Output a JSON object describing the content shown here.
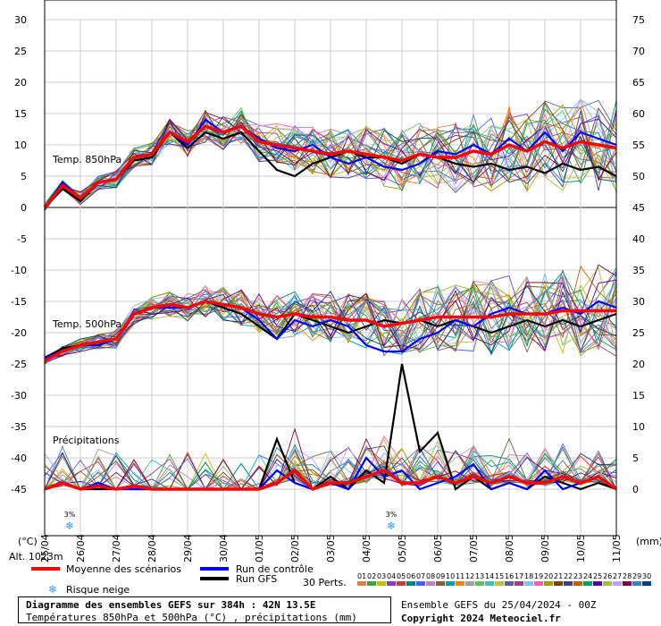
{
  "header": {
    "unit_left": "(°C)",
    "unit_right": "(mm)",
    "altitude": "Alt. 1023m"
  },
  "chart_data": {
    "type": "line",
    "title": "Diagramme des ensembles GEFS sur 384h : 42N 13.5E",
    "subtitle": "Températures 850hPa et 500hPa (°C) , précipitations (mm)",
    "run": "Ensemble GEFS du 25/04/2024 - 00Z",
    "copyright": "Copyright 2024 Meteociel.fr",
    "x_date_labels": [
      "25/04",
      "26/04",
      "27/04",
      "28/04",
      "29/04",
      "30/04",
      "01/05",
      "02/05",
      "03/05",
      "04/05",
      "05/05",
      "06/05",
      "07/05",
      "08/05",
      "09/05",
      "10/05",
      "11/05"
    ],
    "x_range_h": [
      0,
      384
    ],
    "left_axis": {
      "ticks": [
        30,
        25,
        20,
        15,
        10,
        5,
        0,
        -5,
        -10,
        -15,
        -20,
        -25,
        -30,
        -35,
        -40,
        -45
      ],
      "unit": "°C",
      "range": [
        -45,
        30
      ]
    },
    "right_axis": {
      "ticks": [
        75,
        70,
        65,
        60,
        55,
        50,
        45,
        40,
        35,
        30,
        25,
        20,
        15,
        10,
        5,
        0
      ],
      "unit": "mm",
      "range": [
        0,
        75
      ]
    },
    "panel_labels": [
      "Temp. 850hPa",
      "Temp. 500hPa",
      "Précipitations"
    ],
    "snow_risk_dates": [
      "25/04",
      "04/05"
    ],
    "snow_risk_marker_label": "3%",
    "legend": {
      "mean": "Moyenne des scénarios",
      "control": "Run de contrôle",
      "gfs": "Run GFS",
      "snow": "Risque neige",
      "perts": "30 Perts.",
      "pert_numbers": [
        "01",
        "02",
        "03",
        "04",
        "05",
        "06",
        "07",
        "08",
        "09",
        "10",
        "11",
        "12",
        "13",
        "14",
        "15",
        "16",
        "17",
        "18",
        "19",
        "20",
        "21",
        "22",
        "23",
        "24",
        "25",
        "26",
        "27",
        "28",
        "29",
        "30"
      ],
      "pert_colors": [
        "#e08040",
        "#40a040",
        "#c0c000",
        "#8040c0",
        "#c04040",
        "#008080",
        "#4060ff",
        "#c080c0",
        "#806040",
        "#00a0a0",
        "#ff8000",
        "#a0a0a0",
        "#60c060",
        "#40c0c0",
        "#c0c040",
        "#6060a0",
        "#a04080",
        "#80c0ff",
        "#ff60a0",
        "#a0a000",
        "#804000",
        "#404080",
        "#c06000",
        "#00a060",
        "#6000a0",
        "#a0c040",
        "#c0a0ff",
        "#800040",
        "#4080c0",
        "#004080"
      ]
    },
    "series": [
      {
        "name": "Moyenne des scénarios",
        "panel": "850hPa",
        "color": "#ff0000",
        "x_h": [
          0,
          12,
          24,
          36,
          48,
          60,
          72,
          84,
          96,
          108,
          120,
          132,
          144,
          156,
          168,
          180,
          192,
          204,
          216,
          228,
          240,
          252,
          264,
          276,
          288,
          300,
          312,
          324,
          336,
          348,
          360,
          372,
          384
        ],
        "y": [
          0,
          3.5,
          1.5,
          4,
          4.5,
          8,
          8.5,
          12,
          10.5,
          13,
          12,
          13,
          10.5,
          10,
          9.5,
          9,
          8.5,
          9,
          8.5,
          8,
          7.5,
          8.5,
          8,
          8,
          9,
          8.5,
          10,
          9,
          10.5,
          9.5,
          10.5,
          10,
          9.5
        ]
      },
      {
        "name": "Run de contrôle",
        "panel": "850hPa",
        "color": "#0000ff",
        "x_h": [
          0,
          12,
          24,
          36,
          48,
          60,
          72,
          84,
          96,
          108,
          120,
          132,
          144,
          156,
          168,
          180,
          192,
          204,
          216,
          228,
          240,
          252,
          264,
          276,
          288,
          300,
          312,
          324,
          336,
          348,
          360,
          372,
          384
        ],
        "y": [
          0,
          4,
          1.5,
          4,
          4.5,
          8,
          8.5,
          12,
          10,
          14,
          12,
          13,
          11,
          9.5,
          9,
          10,
          8,
          7,
          8,
          6.5,
          6,
          7,
          9,
          8.5,
          10,
          8.5,
          11,
          9,
          12,
          9,
          12,
          11,
          10
        ]
      },
      {
        "name": "Run GFS",
        "panel": "850hPa",
        "color": "#000000",
        "x_h": [
          0,
          12,
          24,
          36,
          48,
          60,
          72,
          84,
          96,
          108,
          120,
          132,
          144,
          156,
          168,
          180,
          192,
          204,
          216,
          228,
          240,
          252,
          264,
          276,
          288,
          300,
          312,
          324,
          336,
          348,
          360,
          372,
          384
        ],
        "y": [
          0,
          3,
          1,
          4,
          4.5,
          7.5,
          8,
          12,
          9.5,
          12,
          11,
          12,
          9,
          6,
          5,
          7,
          8,
          9,
          8,
          8,
          7,
          8.5,
          8,
          7,
          6.5,
          7,
          6,
          6.5,
          5.5,
          7,
          6,
          6.5,
          5
        ]
      },
      {
        "name": "Moyenne des scénarios",
        "panel": "500hPa",
        "color": "#ff0000",
        "x_h": [
          0,
          12,
          24,
          36,
          48,
          60,
          72,
          84,
          96,
          108,
          120,
          132,
          144,
          156,
          168,
          180,
          192,
          204,
          216,
          228,
          240,
          252,
          264,
          276,
          288,
          300,
          312,
          324,
          336,
          348,
          360,
          372,
          384
        ],
        "y": [
          -24.5,
          -23,
          -22,
          -21.5,
          -21,
          -17,
          -16,
          -15.5,
          -16,
          -15,
          -15.5,
          -16,
          -17,
          -17.5,
          -17,
          -17.5,
          -17.5,
          -18,
          -18,
          -19,
          -18.5,
          -18,
          -17.5,
          -17.5,
          -17.5,
          -17.5,
          -17,
          -17,
          -17,
          -16.5,
          -16.5,
          -16.5,
          -16.5
        ]
      },
      {
        "name": "Run de contrôle",
        "panel": "500hPa",
        "color": "#0000ff",
        "x_h": [
          0,
          12,
          24,
          36,
          48,
          60,
          72,
          84,
          96,
          108,
          120,
          132,
          144,
          156,
          168,
          180,
          192,
          204,
          216,
          228,
          240,
          252,
          264,
          276,
          288,
          300,
          312,
          324,
          336,
          348,
          360,
          372,
          384
        ],
        "y": [
          -24,
          -23,
          -22,
          -22,
          -21,
          -17,
          -16,
          -16,
          -16,
          -15,
          -15.5,
          -16,
          -18,
          -21,
          -18,
          -19,
          -18,
          -19,
          -22,
          -23,
          -23,
          -21,
          -20,
          -18,
          -19,
          -17,
          -16,
          -17,
          -17,
          -16,
          -17,
          -15,
          -16
        ]
      },
      {
        "name": "Run GFS",
        "panel": "500hPa",
        "color": "#000000",
        "x_h": [
          0,
          12,
          24,
          36,
          48,
          60,
          72,
          84,
          96,
          108,
          120,
          132,
          144,
          156,
          168,
          180,
          192,
          204,
          216,
          228,
          240,
          252,
          264,
          276,
          288,
          300,
          312,
          324,
          336,
          348,
          360,
          372,
          384
        ],
        "y": [
          -24,
          -22.5,
          -22,
          -22,
          -21,
          -17,
          -16,
          -15.5,
          -16,
          -15,
          -16,
          -17,
          -19,
          -21,
          -17,
          -18,
          -19,
          -20,
          -19,
          -18,
          -18.5,
          -18,
          -19,
          -18,
          -19,
          -20,
          -19,
          -18,
          -19,
          -18,
          -19,
          -18,
          -17
        ]
      },
      {
        "name": "Moyenne des scénarios",
        "panel": "precip",
        "color": "#ff0000",
        "x_h": [
          0,
          12,
          24,
          36,
          48,
          60,
          72,
          84,
          96,
          108,
          120,
          132,
          144,
          156,
          168,
          180,
          192,
          204,
          216,
          228,
          240,
          252,
          264,
          276,
          288,
          300,
          312,
          324,
          336,
          348,
          360,
          372,
          384
        ],
        "y": [
          0,
          1,
          0,
          0.5,
          0,
          0.5,
          0,
          0,
          0,
          0,
          0,
          0,
          0,
          1,
          3,
          0,
          1,
          1,
          2,
          3,
          1,
          1,
          2,
          1,
          2,
          1,
          2,
          1,
          1,
          2,
          1,
          2,
          0
        ]
      },
      {
        "name": "Run de contrôle",
        "panel": "precip",
        "color": "#0000ff",
        "x_h": [
          0,
          12,
          24,
          36,
          48,
          60,
          72,
          84,
          96,
          108,
          120,
          132,
          144,
          156,
          168,
          180,
          192,
          204,
          216,
          228,
          240,
          252,
          264,
          276,
          288,
          300,
          312,
          324,
          336,
          348,
          360,
          372,
          384
        ],
        "y": [
          0,
          1,
          0,
          1,
          0,
          0,
          0,
          0,
          0,
          0,
          0,
          0,
          0,
          3,
          1,
          0,
          1,
          0,
          5,
          2,
          3,
          0,
          1,
          2,
          4,
          0,
          1,
          0,
          3,
          0,
          1,
          2,
          0
        ]
      },
      {
        "name": "Run GFS",
        "panel": "precip",
        "color": "#000000",
        "x_h": [
          0,
          12,
          24,
          36,
          48,
          60,
          72,
          84,
          96,
          108,
          120,
          132,
          144,
          156,
          168,
          180,
          192,
          204,
          216,
          228,
          240,
          252,
          264,
          276,
          288,
          300,
          312,
          324,
          336,
          348,
          360,
          372,
          384
        ],
        "y": [
          0,
          1,
          0,
          0,
          0,
          0,
          0,
          0,
          0,
          0,
          0,
          0,
          0,
          8,
          1,
          0,
          2,
          0,
          3,
          1,
          20,
          6,
          9,
          0,
          2,
          0,
          1,
          0,
          2,
          1,
          0,
          1,
          0
        ]
      }
    ]
  }
}
